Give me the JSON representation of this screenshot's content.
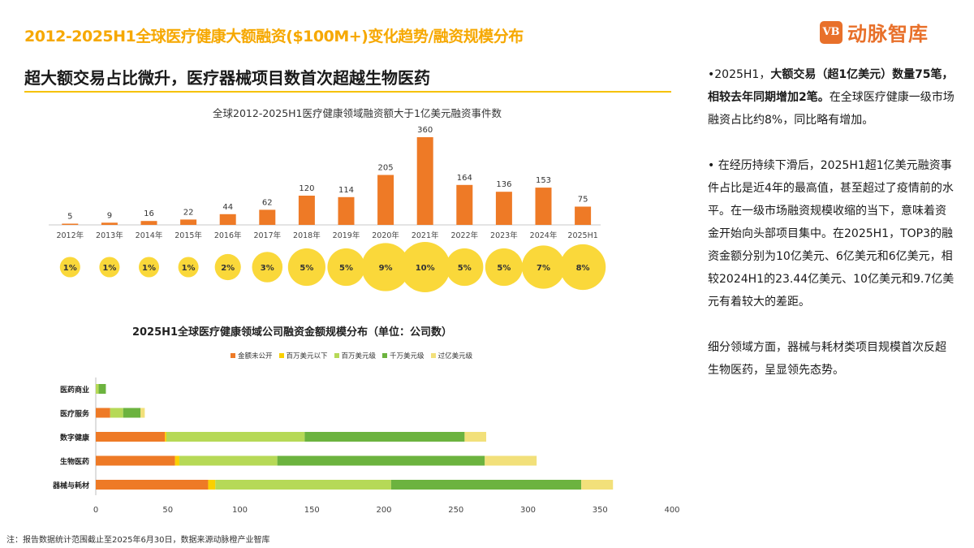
{
  "header": {
    "title": "2012-2025H1全球医疗健康大额融资($100M+)变化趋势/融资规模分布",
    "logo_mark": "VB",
    "logo_text": "动脉智库",
    "subtitle": "超大额交易占比微升，医疗器械项目数首次超越生物医药"
  },
  "footnote": "注：报告数据统计范围截止至2025年6月30日，数据来源动脉橙产业智库",
  "right_panel": {
    "p1_a": "•2025H1，",
    "p1_b": "大额交易（超1亿美元）数量75笔，相较去年同期增加2笔。",
    "p1_c": "在全球医疗健康一级市场融资占比约8%，同比略有增加。",
    "p2": "• 在经历持续下滑后，2025H1超1亿美元融资事件占比是近4年的最高值，甚至超过了疫情前的水平。在一级市场融资规模收缩的当下，意味着资金开始向头部项目集中。在2025H1，TOP3的融资金额分别为10亿美元、6亿美元和6亿美元，相较2024H1的23.44亿美元、10亿美元和9.7亿美元有着较大的差距。",
    "p3": "细分领域方面，器械与耗材类项目规模首次反超生物医药，呈显领先态势。"
  },
  "chart_data": [
    {
      "type": "bar",
      "title": "全球2012-2025H1医疗健康领域融资额大于1亿美元融资事件数",
      "categories": [
        "2012年",
        "2013年",
        "2014年",
        "2015年",
        "2016年",
        "2017年",
        "2018年",
        "2019年",
        "2020年",
        "2021年",
        "2022年",
        "2023年",
        "2024年",
        "2025H1"
      ],
      "values": [
        5,
        9,
        16,
        22,
        44,
        62,
        120,
        114,
        205,
        360,
        164,
        136,
        153,
        75
      ],
      "share_labels": [
        "1%",
        "1%",
        "1%",
        "1%",
        "2%",
        "3%",
        "5%",
        "5%",
        "9%",
        "10%",
        "5%",
        "5%",
        "7%",
        "8%"
      ],
      "share_values": [
        1,
        1,
        1,
        1,
        2,
        3,
        5,
        5,
        9,
        10,
        5,
        5,
        7,
        8
      ],
      "colors": {
        "bar": "#ee7a26",
        "bubble": "#fad83a"
      }
    },
    {
      "type": "bar",
      "orientation": "horizontal",
      "stacked": true,
      "title": "2025H1全球医疗健康领域公司融资金额规模分布（单位：公司数）",
      "categories": [
        "医药商业",
        "医疗服务",
        "数字健康",
        "生物医药",
        "器械与耗材"
      ],
      "series": [
        {
          "name": "金额未公开",
          "color": "#ee7a26",
          "values": [
            0,
            10,
            48,
            55,
            78
          ]
        },
        {
          "name": "百万美元以下",
          "color": "#fad000",
          "values": [
            0,
            0,
            1,
            3,
            5
          ]
        },
        {
          "name": "百万美元级",
          "color": "#b6d957",
          "values": [
            2,
            9,
            96,
            68,
            122
          ]
        },
        {
          "name": "千万美元级",
          "color": "#6cb33f",
          "values": [
            5,
            12,
            111,
            144,
            132
          ]
        },
        {
          "name": "过亿美元级",
          "color": "#f2e07a",
          "values": [
            0,
            3,
            15,
            36,
            22
          ]
        }
      ],
      "xlim": [
        0,
        400
      ],
      "xticks": [
        0,
        50,
        100,
        150,
        200,
        250,
        300,
        350,
        400
      ]
    }
  ]
}
